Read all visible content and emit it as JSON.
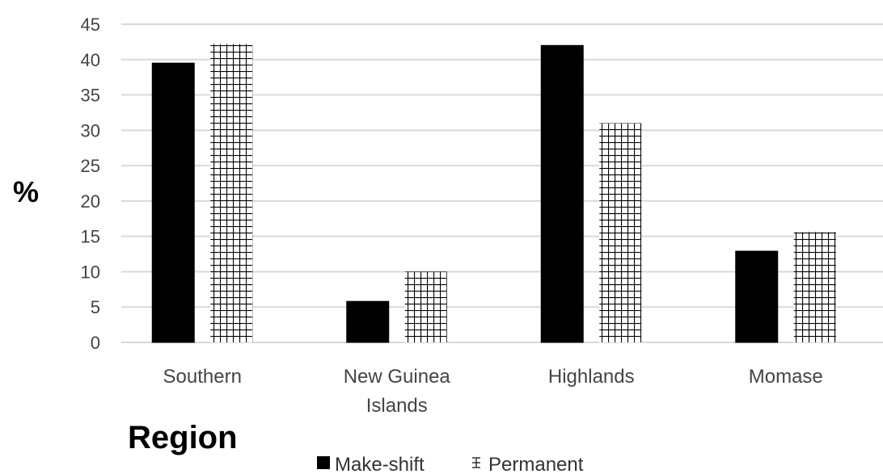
{
  "chart_data": {
    "type": "bar",
    "categories": [
      [
        "Southern"
      ],
      [
        "New Guinea",
        "Islands"
      ],
      [
        "Highlands"
      ],
      [
        "Momase"
      ]
    ],
    "series": [
      {
        "name": "Make-shift",
        "values": [
          39.5,
          5.8,
          42,
          12.9
        ],
        "color": "#000000",
        "pattern": "solid"
      },
      {
        "name": "Permanent",
        "values": [
          42.2,
          10,
          31,
          15.6
        ],
        "color": "#000000",
        "pattern": "grid"
      }
    ],
    "ylabel": "%",
    "xlabel": "Region",
    "ylim": [
      0,
      45
    ],
    "yticks": [
      0,
      5,
      10,
      15,
      20,
      25,
      30,
      35,
      40,
      45
    ],
    "grid": true,
    "legend": "bottom-center",
    "grid_color": "#d9d9d9"
  }
}
